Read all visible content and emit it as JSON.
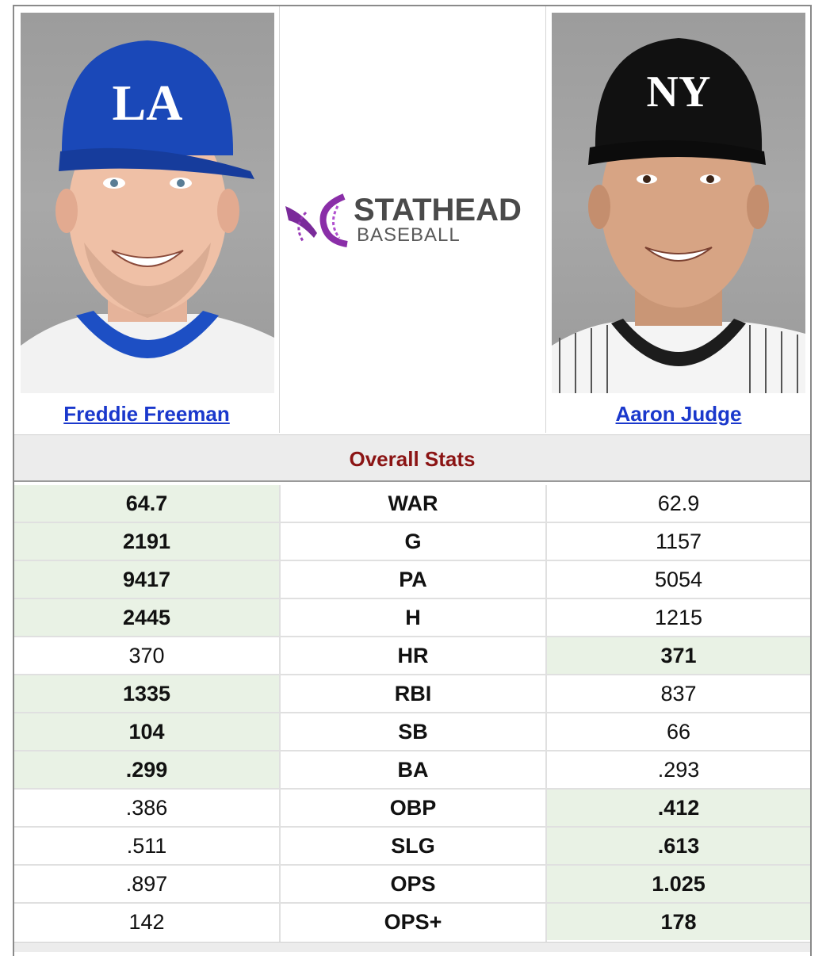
{
  "left_player": {
    "name": "Freddie Freeman",
    "cap_logo": "LA"
  },
  "right_player": {
    "name": "Aaron Judge",
    "cap_logo": "NY"
  },
  "logo": {
    "word1": "STATHEAD",
    "word2": "BASEBALL"
  },
  "section": {
    "title": "Overall Stats"
  },
  "colors": {
    "link": "#1a38cc",
    "section_title": "#8b1414",
    "highlight": "#e9f2e5"
  },
  "stats": [
    {
      "label": "WAR",
      "left": "64.7",
      "right": "62.9",
      "winner": "left"
    },
    {
      "label": "G",
      "left": "2191",
      "right": "1157",
      "winner": "left"
    },
    {
      "label": "PA",
      "left": "9417",
      "right": "5054",
      "winner": "left"
    },
    {
      "label": "H",
      "left": "2445",
      "right": "1215",
      "winner": "left"
    },
    {
      "label": "HR",
      "left": "370",
      "right": "371",
      "winner": "right"
    },
    {
      "label": "RBI",
      "left": "1335",
      "right": "837",
      "winner": "left"
    },
    {
      "label": "SB",
      "left": "104",
      "right": "66",
      "winner": "left"
    },
    {
      "label": "BA",
      "left": ".299",
      "right": ".293",
      "winner": "left"
    },
    {
      "label": "OBP",
      "left": ".386",
      "right": ".412",
      "winner": "right"
    },
    {
      "label": "SLG",
      "left": ".511",
      "right": ".613",
      "winner": "right"
    },
    {
      "label": "OPS",
      "left": ".897",
      "right": "1.025",
      "winner": "right"
    },
    {
      "label": "OPS+",
      "left": "142",
      "right": "178",
      "winner": "right"
    }
  ]
}
